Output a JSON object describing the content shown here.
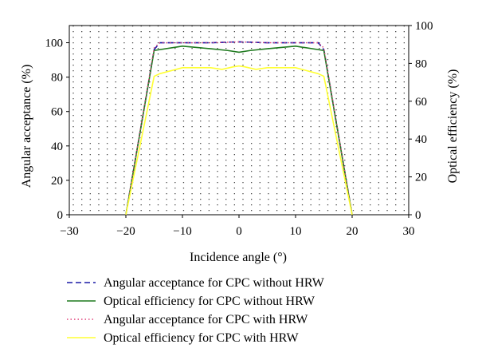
{
  "chart_data": {
    "type": "line",
    "xlabel": "Incidence angle (°)",
    "ylabel_left": "Angular acceptance (%)",
    "ylabel_right": "Optical efficiency (%)",
    "xlim": [
      -30,
      30
    ],
    "ylim_left": [
      0,
      110
    ],
    "ylim_right": [
      0,
      100
    ],
    "x_ticks": [
      -30,
      -20,
      -10,
      0,
      10,
      20,
      30
    ],
    "x_tick_labels": [
      "−30",
      "−20",
      "−10",
      "0",
      "10",
      "20",
      "30"
    ],
    "y_ticks_left": [
      0,
      20,
      40,
      60,
      80,
      100
    ],
    "y_ticks_right": [
      0,
      20,
      40,
      60,
      80,
      100
    ],
    "grid": "dotted",
    "legend_position": "bottom",
    "series": [
      {
        "name": "Angular acceptance for CPC without HRW",
        "axis": "left",
        "color": "#1a1aa6",
        "style": "dashed",
        "x": [
          -20,
          -15,
          -14,
          -10,
          -5,
          0,
          5,
          10,
          14,
          15,
          20
        ],
        "y": [
          0,
          96,
          100,
          100,
          100,
          100.5,
          100,
          100,
          100,
          96,
          0
        ]
      },
      {
        "name": "Optical efficiency for CPC without HRW",
        "axis": "left",
        "color": "#1f7a1f",
        "style": "solid",
        "x": [
          -20,
          -15,
          -10,
          -5,
          -2,
          0,
          2,
          5,
          10,
          15,
          20
        ],
        "y": [
          0,
          95.5,
          98,
          96.5,
          95.5,
          94.5,
          95.5,
          96.5,
          98,
          95.5,
          0
        ]
      },
      {
        "name": "Angular acceptance for CPC with HRW",
        "axis": "left",
        "color": "#e0407a",
        "style": "dotted",
        "x": [
          -20,
          -15,
          -14,
          -10,
          -5,
          0,
          5,
          10,
          14,
          15,
          20
        ],
        "y": [
          0,
          97,
          100,
          100,
          100,
          100.5,
          100,
          100,
          100,
          97,
          0
        ]
      },
      {
        "name": "Optical efficiency for CPC with HRW",
        "axis": "left",
        "color": "#ffff33",
        "style": "solid",
        "x": [
          -20,
          -15,
          -14,
          -10,
          -5,
          -3,
          -1,
          0,
          1,
          3,
          5,
          10,
          14,
          15,
          20
        ],
        "y": [
          0,
          80.5,
          82,
          85.5,
          85.5,
          84.5,
          86,
          86.5,
          86,
          84.5,
          85.5,
          85.5,
          82,
          80.5,
          0
        ]
      }
    ]
  }
}
